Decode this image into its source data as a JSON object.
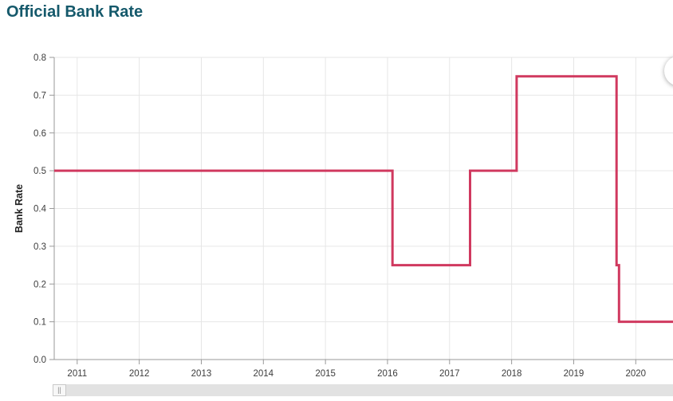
{
  "header": {
    "title": "Official Bank Rate"
  },
  "colors": {
    "title": "#15596b",
    "line": "#d0395f",
    "grid": "#e6e6e6",
    "axis": "#999999",
    "tick_text": "#3d3d3d"
  },
  "chart_data": {
    "type": "line",
    "step": true,
    "title": "Official Bank Rate",
    "xlabel": "",
    "ylabel": "Bank Rate",
    "ylim": [
      0.0,
      0.8
    ],
    "xlim": [
      2011.13,
      2021.1
    ],
    "grid": true,
    "legend": "none",
    "y_ticks": [
      "0.0",
      "0.1",
      "0.2",
      "0.3",
      "0.4",
      "0.5",
      "0.6",
      "0.7",
      "0.8"
    ],
    "x_ticks": [
      {
        "label": "2011",
        "v": 2011.5
      },
      {
        "label": "2012",
        "v": 2012.5
      },
      {
        "label": "2013",
        "v": 2013.5
      },
      {
        "label": "2014",
        "v": 2014.5
      },
      {
        "label": "2015",
        "v": 2015.5
      },
      {
        "label": "2016",
        "v": 2016.5
      },
      {
        "label": "2017",
        "v": 2017.5
      },
      {
        "label": "2018",
        "v": 2018.5
      },
      {
        "label": "2019",
        "v": 2019.5
      },
      {
        "label": "2020",
        "v": 2020.5
      }
    ],
    "series": [
      {
        "name": "Bank Rate",
        "color": "#d0395f",
        "points": [
          [
            2011.13,
            0.5
          ],
          [
            2016.58,
            0.5
          ],
          [
            2016.58,
            0.25
          ],
          [
            2017.83,
            0.25
          ],
          [
            2017.83,
            0.5
          ],
          [
            2018.58,
            0.5
          ],
          [
            2018.58,
            0.75
          ],
          [
            2020.19,
            0.75
          ],
          [
            2020.19,
            0.25
          ],
          [
            2020.23,
            0.25
          ],
          [
            2020.23,
            0.1
          ],
          [
            2021.1,
            0.1
          ]
        ]
      }
    ]
  },
  "scrollbar": {
    "grip_glyph": "||"
  }
}
